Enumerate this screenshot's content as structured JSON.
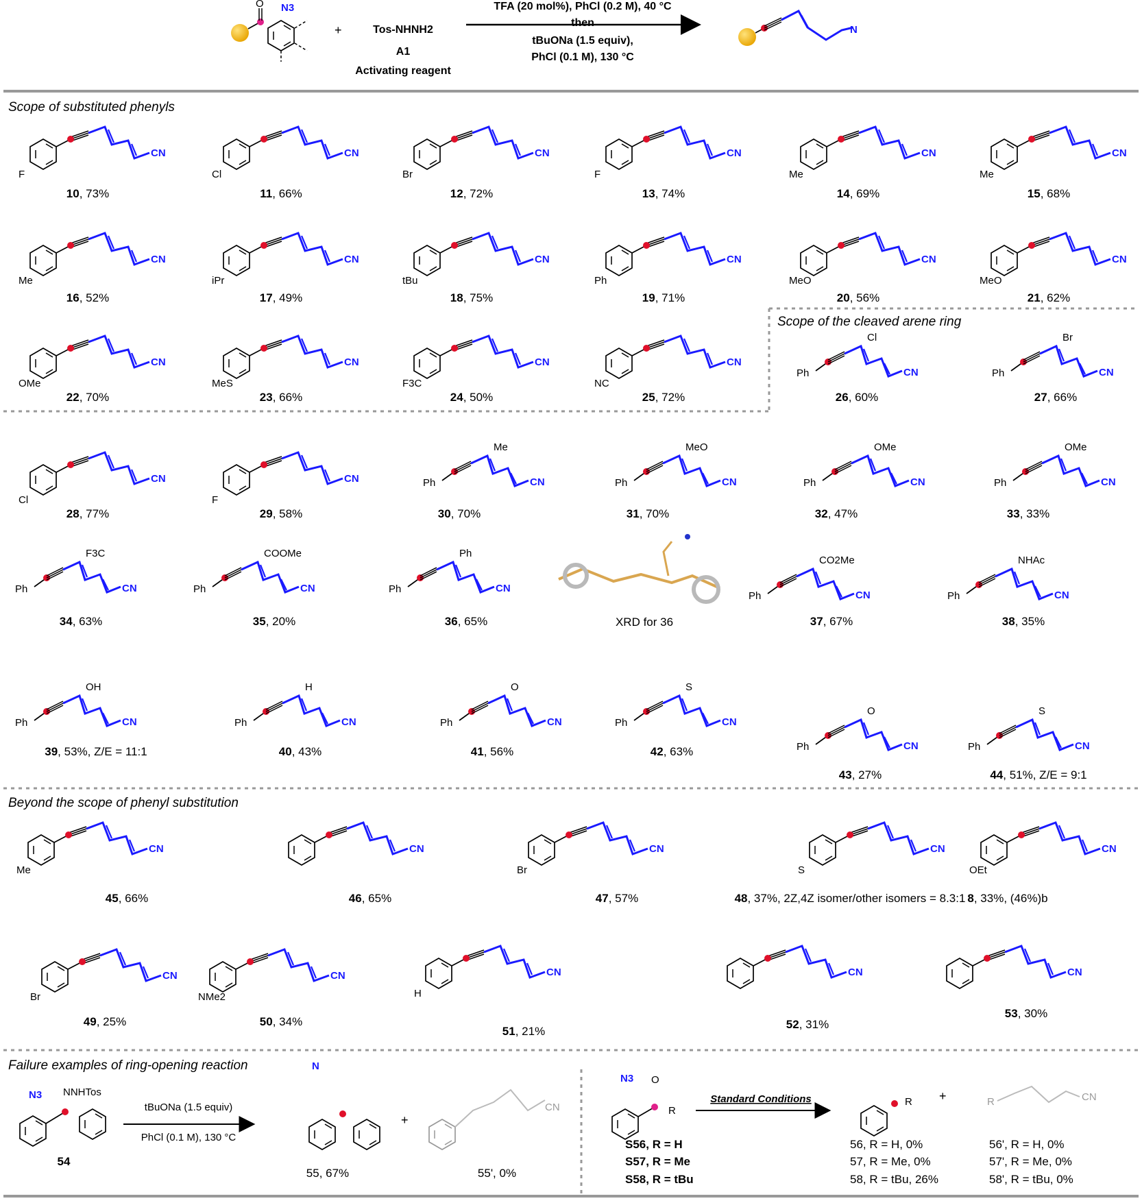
{
  "header": {
    "reagent": "Tos-NHNH2",
    "reagent_code": "A1",
    "reagent_role": "Activating reagent",
    "conditions": [
      "TFA (20 mol%), PhCl (0.2 M), 40 °C",
      "then",
      "tBuONa (1.5 equiv),",
      "PhCl (0.1 M), 130 °C"
    ]
  },
  "sections": {
    "phenyls": "Scope of substituted phenyls",
    "cleaved": "Scope of the cleaved arene ring",
    "beyond": "Beyond the scope of phenyl substitution",
    "failure": "Failure examples of ring-opening reaction"
  },
  "compounds": [
    {
      "id": "10",
      "text": "10, 73%",
      "sub": "F"
    },
    {
      "id": "11",
      "text": "11,  66%",
      "sub": "Cl"
    },
    {
      "id": "12",
      "text": "12, 72%",
      "sub": "Br"
    },
    {
      "id": "13",
      "text": "13, 74%",
      "sub": "F"
    },
    {
      "id": "14",
      "text": "14, 69%",
      "sub": "Me"
    },
    {
      "id": "15",
      "text": "15, 68%",
      "sub": "Me"
    },
    {
      "id": "16",
      "text": "16, 52%",
      "sub": "Me"
    },
    {
      "id": "17",
      "text": "17, 49%",
      "sub": "iPr"
    },
    {
      "id": "18",
      "text": "18, 75%",
      "sub": "tBu"
    },
    {
      "id": "19",
      "text": "19, 71%",
      "sub": "Ph"
    },
    {
      "id": "20",
      "text": "20, 56%",
      "sub": "MeO"
    },
    {
      "id": "21",
      "text": "21, 62%",
      "sub": "MeO"
    },
    {
      "id": "22",
      "text": "22, 70%",
      "sub": "OMe"
    },
    {
      "id": "23",
      "text": "23, 66%",
      "sub": "MeS"
    },
    {
      "id": "24",
      "text": "24, 50%",
      "sub": "F3C"
    },
    {
      "id": "25",
      "text": "25, 72%",
      "sub": "NC"
    },
    {
      "id": "26",
      "text": "26, 60%",
      "sub": "Cl"
    },
    {
      "id": "27",
      "text": "27, 66%",
      "sub": "Br"
    },
    {
      "id": "28",
      "text": "28, 77%",
      "sub": "Cl"
    },
    {
      "id": "29",
      "text": "29, 58%",
      "sub": "F"
    },
    {
      "id": "30",
      "text": "30, 70%",
      "sub": "Me"
    },
    {
      "id": "31",
      "text": "31, 70%",
      "sub": "MeO"
    },
    {
      "id": "32",
      "text": "32, 47%",
      "sub": "OMe"
    },
    {
      "id": "33",
      "text": "33, 33%",
      "sub": "OMe"
    },
    {
      "id": "34",
      "text": "34, 63%",
      "sub": "F3C"
    },
    {
      "id": "35",
      "text": "35, 20%",
      "sub": "COOMe"
    },
    {
      "id": "36",
      "text": "36, 65%",
      "sub": "Ph"
    },
    {
      "id": "37",
      "text": "37, 67%",
      "sub": "CO2Me"
    },
    {
      "id": "38",
      "text": "38, 35%",
      "sub": "NHAc"
    },
    {
      "id": "39",
      "text": "39, 53%, Z/E = 11:1",
      "sub": "OH"
    },
    {
      "id": "40",
      "text": "40, 43%",
      "sub": "H"
    },
    {
      "id": "41",
      "text": "41, 56%",
      "sub": "O"
    },
    {
      "id": "42",
      "text": "42, 63%",
      "sub": "S"
    },
    {
      "id": "43",
      "text": "43, 27%",
      "sub": "O"
    },
    {
      "id": "44",
      "text": "44, 51%, Z/E = 9:1",
      "sub": "S"
    },
    {
      "id": "45",
      "text": "45, 66%",
      "sub": "Me"
    },
    {
      "id": "46",
      "text": "46, 65%",
      "sub": ""
    },
    {
      "id": "47",
      "text": "47, 57%",
      "sub": "Br"
    },
    {
      "id": "48",
      "text": "48, 37%, 2Z,4Z isomer/other isomers = 8.3:1",
      "sub": "S"
    },
    {
      "id": "8",
      "text": "8, 33%, (46%)b",
      "sub": "OEt"
    },
    {
      "id": "49",
      "text": "49, 25%",
      "sub": "Br"
    },
    {
      "id": "50",
      "text": "50, 34%",
      "sub": "NMe2"
    },
    {
      "id": "51",
      "text": "51, 21%",
      "sub": "H"
    },
    {
      "id": "52",
      "text": "52, 31%",
      "sub": ""
    },
    {
      "id": "53",
      "text": "53, 30%",
      "sub": ""
    }
  ],
  "xrd": "XRD for 36",
  "failure": {
    "sm": "54",
    "cond1": "tBuONa (1.5 equiv)",
    "cond2": "PhCl (0.1 M), 130 °C",
    "p1": "55, 67%",
    "p2": "55', 0%",
    "std": "Standard Conditions",
    "s56": "S56, R = H",
    "s57": "S57, R = Me",
    "s58": "S58, R = tBu",
    "p56": "56, R = H, 0%",
    "p57": "57, R = Me, 0%",
    "p58": "58, R =  tBu, 26%",
    "q56": "56', R = H, 0%",
    "q57": "57', R = Me, 0%",
    "q58": "58', R = tBu, 0%"
  },
  "labels": {
    "cn": "CN",
    "n3": "N3",
    "o": "O",
    "nnhtos": "NNHTos",
    "r": "R",
    "n": "N",
    "cl": "Cl",
    "plus": "+"
  },
  "colors": {
    "accent": "#1a1aff",
    "dot": "#e0102a",
    "pink": "#e0208a",
    "sphere": "#f4b400",
    "rule": "#999999",
    "grey": "#aaaaaa"
  }
}
